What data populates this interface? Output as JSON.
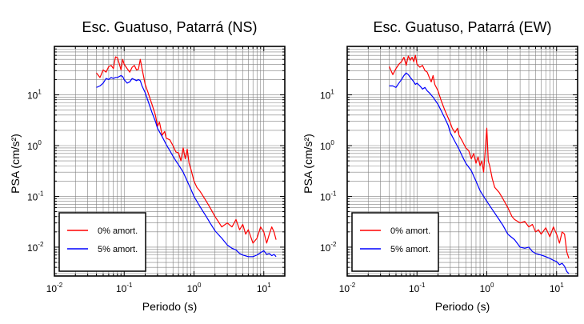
{
  "chart_data": [
    {
      "type": "line",
      "title": "Esc. Guatuso, Patarrá (NS)",
      "xlabel": "Periodo (s)",
      "ylabel": "PSA (cm/s²)",
      "xscale": "log",
      "yscale": "log",
      "xlim": [
        0.01,
        20
      ],
      "ylim": [
        0.0027,
        90
      ],
      "grid": true,
      "legend_position": "bottom-left",
      "x_ticks": [
        {
          "base": "10",
          "exp": "-2"
        },
        {
          "base": "10",
          "exp": "-1"
        },
        {
          "base": "10",
          "exp": "0"
        },
        {
          "base": "10",
          "exp": "1"
        }
      ],
      "y_ticks": [
        {
          "base": "10",
          "exp": "-2"
        },
        {
          "base": "10",
          "exp": "-1"
        },
        {
          "base": "10",
          "exp": "0"
        },
        {
          "base": "10",
          "exp": "1"
        }
      ],
      "series": [
        {
          "name": "0% amort.",
          "color": "#ff0000",
          "x": [
            0.04,
            0.045,
            0.05,
            0.055,
            0.06,
            0.065,
            0.07,
            0.075,
            0.08,
            0.085,
            0.09,
            0.095,
            0.1,
            0.11,
            0.12,
            0.13,
            0.14,
            0.15,
            0.16,
            0.17,
            0.18,
            0.2,
            0.22,
            0.25,
            0.28,
            0.3,
            0.32,
            0.35,
            0.38,
            0.4,
            0.45,
            0.5,
            0.55,
            0.6,
            0.65,
            0.7,
            0.75,
            0.8,
            0.85,
            0.9,
            1.0,
            1.1,
            1.2,
            1.3,
            1.5,
            1.7,
            2.0,
            2.3,
            2.5,
            3.0,
            3.5,
            4.0,
            4.5,
            5.0,
            5.5,
            6.0,
            7.0,
            8.0,
            9.0,
            10.0,
            11.0,
            12.0,
            13.0,
            14.0,
            15.0
          ],
          "y": [
            27,
            22,
            31,
            28,
            36,
            38,
            33,
            56,
            54,
            41,
            31,
            50,
            40,
            33,
            28,
            35,
            38,
            31,
            32,
            50,
            33,
            16,
            11,
            6.5,
            4,
            2.4,
            2.9,
            1.6,
            1.9,
            1.4,
            1.3,
            1.0,
            0.75,
            0.72,
            0.5,
            0.9,
            0.55,
            0.85,
            0.45,
            0.35,
            0.2,
            0.15,
            0.13,
            0.11,
            0.08,
            0.06,
            0.04,
            0.03,
            0.025,
            0.03,
            0.025,
            0.035,
            0.022,
            0.028,
            0.018,
            0.022,
            0.012,
            0.015,
            0.025,
            0.02,
            0.012,
            0.018,
            0.025,
            0.02,
            0.014
          ]
        },
        {
          "name": "5% amort.",
          "color": "#0000ff",
          "x": [
            0.04,
            0.045,
            0.05,
            0.055,
            0.06,
            0.065,
            0.07,
            0.075,
            0.08,
            0.085,
            0.09,
            0.095,
            0.1,
            0.11,
            0.12,
            0.13,
            0.14,
            0.15,
            0.16,
            0.17,
            0.18,
            0.2,
            0.22,
            0.25,
            0.28,
            0.3,
            0.35,
            0.4,
            0.45,
            0.5,
            0.55,
            0.6,
            0.7,
            0.8,
            0.9,
            1.0,
            1.2,
            1.5,
            1.7,
            2.0,
            2.5,
            3.0,
            3.5,
            4.0,
            4.5,
            5.0,
            6.0,
            7.0,
            8.0,
            9.0,
            10.0,
            11.0,
            12.0,
            13.0,
            14.0,
            15.0
          ],
          "y": [
            14,
            15,
            17,
            21,
            20,
            22,
            21,
            22,
            22,
            23,
            24,
            23,
            20,
            17,
            18,
            21,
            20,
            19,
            20,
            19,
            15,
            11,
            7.5,
            4.5,
            3,
            2.2,
            1.5,
            1.05,
            0.8,
            0.62,
            0.5,
            0.42,
            0.3,
            0.2,
            0.14,
            0.1,
            0.065,
            0.04,
            0.03,
            0.021,
            0.015,
            0.011,
            0.0095,
            0.0088,
            0.0075,
            0.007,
            0.0065,
            0.0065,
            0.007,
            0.0078,
            0.0085,
            0.0072,
            0.0075,
            0.0068,
            0.0072,
            0.0065
          ]
        }
      ]
    },
    {
      "type": "line",
      "title": "Esc. Guatuso, Patarrá (EW)",
      "xlabel": "Periodo (s)",
      "ylabel": "PSA (cm/s²)",
      "xscale": "log",
      "yscale": "log",
      "xlim": [
        0.01,
        20
      ],
      "ylim": [
        0.0027,
        90
      ],
      "grid": true,
      "legend_position": "bottom-left",
      "x_ticks": [
        {
          "base": "10",
          "exp": "-2"
        },
        {
          "base": "10",
          "exp": "-1"
        },
        {
          "base": "10",
          "exp": "0"
        },
        {
          "base": "10",
          "exp": "1"
        }
      ],
      "y_ticks": [
        {
          "base": "10",
          "exp": "-2"
        },
        {
          "base": "10",
          "exp": "-1"
        },
        {
          "base": "10",
          "exp": "0"
        },
        {
          "base": "10",
          "exp": "1"
        }
      ],
      "series": [
        {
          "name": "0% amort.",
          "color": "#ff0000",
          "x": [
            0.04,
            0.045,
            0.05,
            0.055,
            0.06,
            0.065,
            0.07,
            0.075,
            0.08,
            0.085,
            0.09,
            0.095,
            0.1,
            0.11,
            0.12,
            0.13,
            0.14,
            0.15,
            0.16,
            0.17,
            0.18,
            0.2,
            0.22,
            0.25,
            0.28,
            0.3,
            0.32,
            0.35,
            0.38,
            0.4,
            0.45,
            0.5,
            0.55,
            0.6,
            0.65,
            0.7,
            0.75,
            0.8,
            0.85,
            0.9,
            0.95,
            1.0,
            1.05,
            1.1,
            1.2,
            1.3,
            1.5,
            1.7,
            2.0,
            2.3,
            2.5,
            3.0,
            3.5,
            4.0,
            4.5,
            5.0,
            5.5,
            6.0,
            7.0,
            8.0,
            9.0,
            10.0,
            11.0,
            12.0,
            13.0,
            14.0,
            15.0
          ],
          "y": [
            36,
            25,
            33,
            40,
            45,
            55,
            38,
            58,
            48,
            55,
            45,
            60,
            40,
            35,
            38,
            30,
            28,
            22,
            18,
            24,
            16,
            12,
            8,
            5,
            3.5,
            2.8,
            2.2,
            1.8,
            2.2,
            1.6,
            1.2,
            0.9,
            0.8,
            0.55,
            0.7,
            0.45,
            0.6,
            0.4,
            0.5,
            0.3,
            0.8,
            2.2,
            0.5,
            0.4,
            0.22,
            0.15,
            0.12,
            0.09,
            0.06,
            0.04,
            0.035,
            0.03,
            0.032,
            0.025,
            0.028,
            0.02,
            0.022,
            0.018,
            0.024,
            0.016,
            0.025,
            0.018,
            0.012,
            0.02,
            0.018,
            0.008,
            0.006
          ]
        },
        {
          "name": "5% amort.",
          "color": "#0000ff",
          "x": [
            0.04,
            0.045,
            0.05,
            0.055,
            0.06,
            0.065,
            0.07,
            0.075,
            0.08,
            0.085,
            0.09,
            0.095,
            0.1,
            0.11,
            0.12,
            0.13,
            0.14,
            0.15,
            0.17,
            0.2,
            0.22,
            0.25,
            0.28,
            0.3,
            0.35,
            0.4,
            0.45,
            0.5,
            0.6,
            0.7,
            0.8,
            0.9,
            1.0,
            1.2,
            1.5,
            1.7,
            2.0,
            2.5,
            3.0,
            3.5,
            4.0,
            4.5,
            5.0,
            6.0,
            7.0,
            8.0,
            9.0,
            10.0,
            11.0,
            12.0,
            13.0,
            14.0,
            15.0
          ],
          "y": [
            15,
            15,
            14,
            17,
            20,
            24,
            27,
            25,
            22,
            20,
            18,
            16,
            17,
            15,
            13,
            14,
            12,
            11,
            9,
            6.5,
            5,
            3.5,
            2.5,
            1.8,
            1.2,
            0.85,
            0.6,
            0.45,
            0.32,
            0.2,
            0.13,
            0.1,
            0.08,
            0.055,
            0.035,
            0.027,
            0.018,
            0.014,
            0.01,
            0.0095,
            0.01,
            0.0082,
            0.0075,
            0.007,
            0.0065,
            0.006,
            0.0055,
            0.0052,
            0.0045,
            0.0048,
            0.0042,
            0.0033,
            0.003
          ]
        }
      ]
    }
  ]
}
